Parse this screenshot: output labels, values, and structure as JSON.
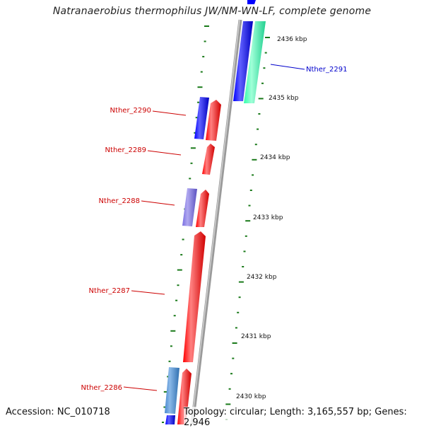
{
  "title": "Natranaerobius thermophilus JW/NM-WN-LF, complete genome",
  "footer": {
    "accession": "Accession: NC_010718",
    "topology": "Topology: circular; Length: 3,165,557 bp; Genes: 2,946"
  },
  "scale_labels": [
    "2436 kbp",
    "2435 kbp",
    "2434 kbp",
    "2433 kbp",
    "2432 kbp",
    "2431 kbp",
    "2430 kbp"
  ],
  "colors": {
    "backbone": "#8a8a8a",
    "ticks": "#1a7a1a",
    "cds_red": "#ff0000",
    "cds_blue": "#0000ff",
    "cds_green": "#33ffaa",
    "cds_violet": "#7a6ee0",
    "cds_steel": "#4a8ad0",
    "label_red": "#cc0000",
    "label_blue": "#0000cc"
  },
  "gene_labels": [
    {
      "text": "Nther_2291",
      "color": "#0000cc"
    },
    {
      "text": "Nther_2290",
      "color": "#cc0000"
    },
    {
      "text": "Nther_2289",
      "color": "#cc0000"
    },
    {
      "text": "Nther_2288",
      "color": "#cc0000"
    },
    {
      "text": "Nther_2287",
      "color": "#cc0000"
    },
    {
      "text": "Nther_2286",
      "color": "#cc0000"
    }
  ]
}
